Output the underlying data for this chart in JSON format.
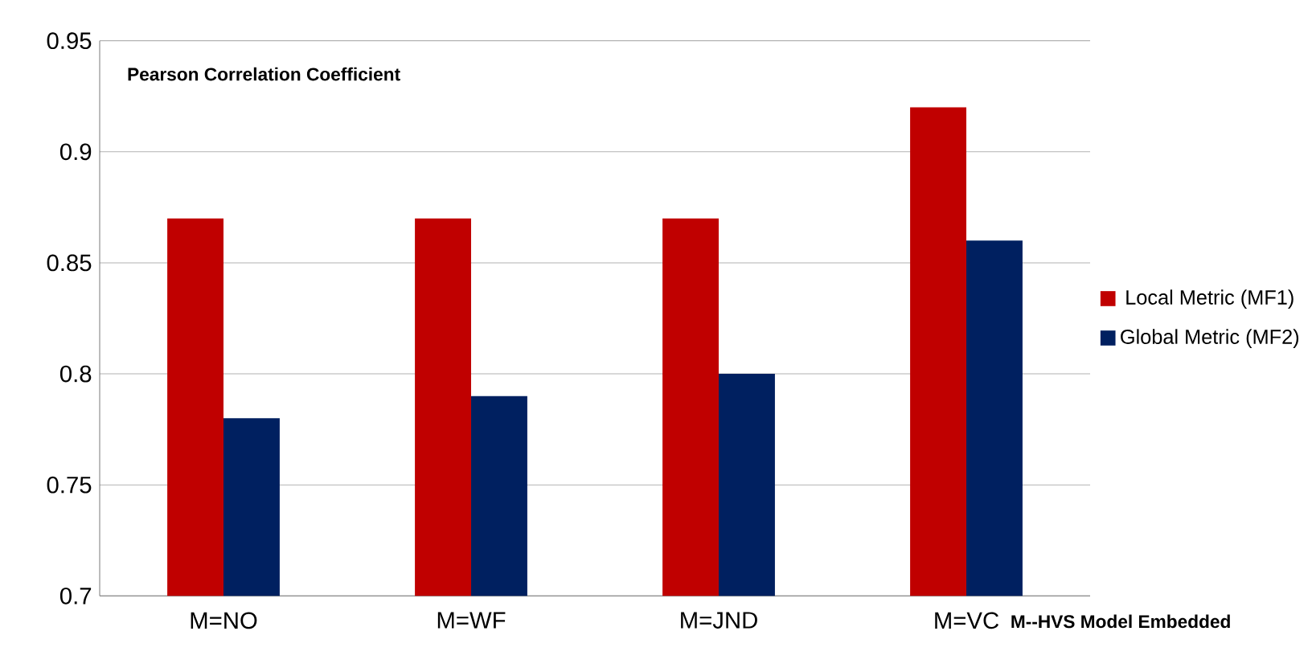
{
  "chart_data": {
    "type": "bar",
    "ylabel": "Pearson Correlation Coefficient",
    "xlabel": "M--HVS Model Embedded",
    "categories": [
      "M=NO",
      "M=WF",
      "M=JND",
      "M=VC"
    ],
    "series": [
      {
        "name": "Local Metric (MF1)",
        "color": "#c00000",
        "values": [
          0.87,
          0.87,
          0.87,
          0.92
        ]
      },
      {
        "name": "Global Metric (MF2)",
        "color": "#002060",
        "values": [
          0.78,
          0.79,
          0.8,
          0.86
        ]
      }
    ],
    "ylim": [
      0.7,
      0.95
    ],
    "yticks": [
      0.7,
      0.75,
      0.8,
      0.85,
      0.9,
      0.95
    ],
    "grid": "y",
    "legend": "right"
  }
}
